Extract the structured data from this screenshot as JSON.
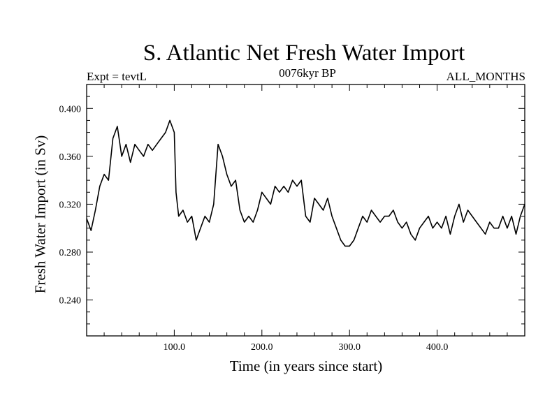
{
  "chart_data": {
    "type": "line",
    "title": "S. Atlantic Net Fresh Water Import",
    "subtitle_left": "Expt = tevtL",
    "subtitle_center": "0076kyr BP",
    "subtitle_right": "ALL_MONTHS",
    "xlabel": "Time (in years since start)",
    "ylabel": "Fresh Water Import (in Sv)",
    "xlim": [
      0,
      500
    ],
    "ylim": [
      0.21,
      0.42
    ],
    "x_ticks": [
      100,
      200,
      300,
      400
    ],
    "x_tick_labels": [
      "100.0",
      "200.0",
      "300.0",
      "400.0"
    ],
    "y_ticks": [
      0.24,
      0.28,
      0.32,
      0.36,
      0.4
    ],
    "y_tick_labels": [
      "0.240",
      "0.280",
      "0.320",
      "0.360",
      "0.400"
    ],
    "grid": false,
    "line_color": "#000000",
    "series": [
      {
        "x": [
          0,
          5,
          10,
          15,
          20,
          25,
          30,
          35,
          40,
          45,
          50,
          55,
          60,
          65,
          70,
          75,
          80,
          85,
          90,
          95,
          100,
          102,
          105,
          110,
          115,
          120,
          125,
          130,
          135,
          140,
          145,
          150,
          155,
          160,
          165,
          170,
          175,
          180,
          185,
          190,
          195,
          200,
          205,
          210,
          215,
          220,
          225,
          230,
          235,
          240,
          245,
          250,
          255,
          260,
          265,
          270,
          275,
          280,
          285,
          290,
          295,
          300,
          305,
          310,
          315,
          320,
          325,
          330,
          335,
          340,
          345,
          350,
          355,
          360,
          365,
          370,
          375,
          380,
          385,
          390,
          395,
          400,
          405,
          410,
          415,
          420,
          425,
          430,
          435,
          440,
          445,
          450,
          455,
          460,
          465,
          470,
          475,
          480,
          485,
          490,
          495,
          500
        ],
        "values": [
          0.308,
          0.298,
          0.315,
          0.335,
          0.345,
          0.34,
          0.375,
          0.385,
          0.36,
          0.37,
          0.355,
          0.37,
          0.365,
          0.36,
          0.37,
          0.365,
          0.37,
          0.375,
          0.38,
          0.39,
          0.38,
          0.33,
          0.31,
          0.315,
          0.305,
          0.31,
          0.29,
          0.3,
          0.31,
          0.305,
          0.32,
          0.37,
          0.36,
          0.345,
          0.335,
          0.34,
          0.315,
          0.305,
          0.31,
          0.305,
          0.315,
          0.33,
          0.325,
          0.32,
          0.335,
          0.33,
          0.335,
          0.33,
          0.34,
          0.335,
          0.34,
          0.31,
          0.305,
          0.325,
          0.32,
          0.315,
          0.325,
          0.31,
          0.3,
          0.29,
          0.285,
          0.285,
          0.29,
          0.3,
          0.31,
          0.305,
          0.315,
          0.31,
          0.305,
          0.31,
          0.31,
          0.315,
          0.305,
          0.3,
          0.305,
          0.295,
          0.29,
          0.3,
          0.305,
          0.31,
          0.3,
          0.305,
          0.3,
          0.31,
          0.295,
          0.31,
          0.32,
          0.305,
          0.315,
          0.31,
          0.305,
          0.3,
          0.295,
          0.305,
          0.3,
          0.3,
          0.31,
          0.3,
          0.31,
          0.295,
          0.31,
          0.32
        ]
      }
    ]
  }
}
